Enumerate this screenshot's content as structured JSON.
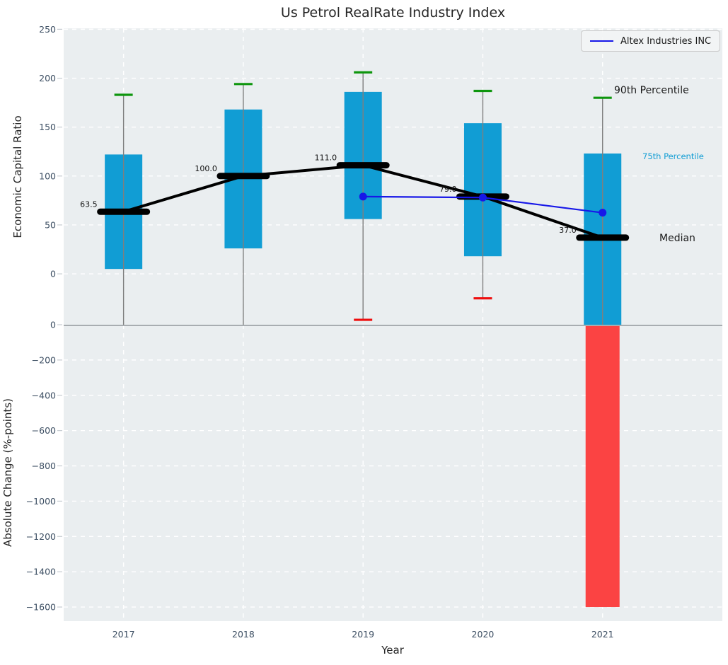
{
  "chart_data": {
    "type": "boxplot",
    "title": "Us Petrol RealRate Industry Index",
    "xlabel": "Year",
    "series_name": "Altex Industries INC",
    "categories": [
      "2017",
      "2018",
      "2019",
      "2020",
      "2021"
    ],
    "x_axis_lim": [
      2016.5,
      2022
    ],
    "legend_position": "top-right",
    "grid": "white dashed on light panels",
    "top_panel": {
      "ylabel": "Economic Capital Ratio",
      "ylim": [
        -52,
        251
      ],
      "yticks": [
        0,
        50,
        100,
        150,
        200,
        250
      ],
      "boxes": [
        {
          "year": "2017",
          "p90": 183,
          "q3": 122,
          "median": 63.5,
          "median_label": "63.5",
          "q1": 5,
          "p10": null
        },
        {
          "year": "2018",
          "p90": 194,
          "q3": 168,
          "median": 100.0,
          "median_label": "100.0",
          "q1": 26,
          "p10": null
        },
        {
          "year": "2019",
          "p90": 206,
          "q3": 186,
          "median": 111.0,
          "median_label": "111.0",
          "q1": 56,
          "p10": -47
        },
        {
          "year": "2020",
          "p90": 187,
          "q3": 154,
          "median": 79.0,
          "median_label": "79.0",
          "q1": 18,
          "p10": -25
        },
        {
          "year": "2021",
          "p90": 180,
          "q3": 123,
          "median": 37.0,
          "median_label": "37.0",
          "q1": -52,
          "p10": null
        }
      ],
      "median_trend": [
        63.5,
        100.0,
        111.0,
        79.0,
        37.0
      ],
      "altex_line": {
        "x": [
          "2019",
          "2020",
          "2021"
        ],
        "y": [
          79,
          78,
          62.5
        ]
      },
      "annotations": {
        "p90": "90th Percentile",
        "p75": "75th Percentile",
        "median": "Median"
      }
    },
    "bottom_panel": {
      "ylabel": "Absolute Change (%-points)",
      "ylim": [
        -1680,
        0
      ],
      "yticks": [
        0,
        -200,
        -400,
        -600,
        -800,
        -1000,
        -1200,
        -1400,
        -1600
      ],
      "bars": [
        {
          "year": "2021",
          "value": -1600
        }
      ]
    },
    "colors": {
      "box_fill": "#119dd4",
      "bar_negative": "#fb4343",
      "cap_high": "#0e960e",
      "cap_low": "#ee0e0e",
      "whisker": "#7f7f7f",
      "median_marker": "#000000",
      "altex_line": "#1717e8",
      "panel_bg": "#eaeef0",
      "grid": "#ffffff",
      "tick_text": "#3d4f63",
      "label_text": "#262626",
      "boundary": "#a8adb1"
    }
  }
}
